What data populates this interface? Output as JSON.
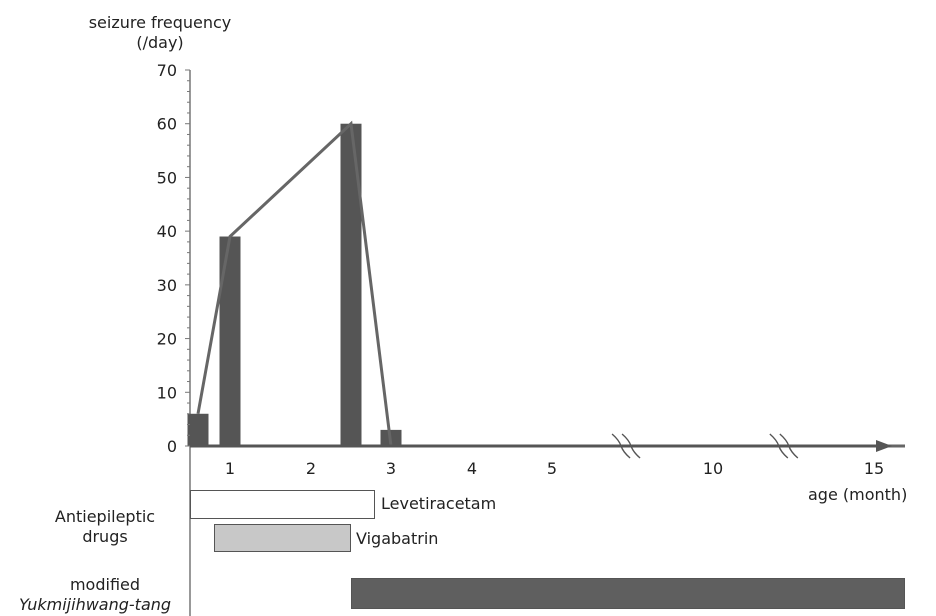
{
  "chart_data": {
    "type": "bar",
    "title": "",
    "ylabel_line1": "seizure frequency",
    "ylabel_line2": "(/day)",
    "xlabel": "age (month)",
    "ylim": [
      0,
      70
    ],
    "yticks": [
      "0",
      "10",
      "20",
      "30",
      "40",
      "50",
      "60",
      "70"
    ],
    "xticks": [
      "1",
      "2",
      "3",
      "4",
      "5",
      "10",
      "15"
    ],
    "axis_breaks": [
      "between 5 and 10",
      "between 10 and 15"
    ],
    "series": [
      {
        "kind": "bar",
        "color": "#555555",
        "points": [
          {
            "x": 0.2,
            "y": 6
          },
          {
            "x": 1.0,
            "y": 39
          },
          {
            "x": 2.5,
            "y": 60
          },
          {
            "x": 3.0,
            "y": 3
          }
        ]
      },
      {
        "kind": "line",
        "color": "#666666",
        "points": [
          {
            "x": 0.2,
            "y": 6
          },
          {
            "x": 1.0,
            "y": 39
          },
          {
            "x": 2.5,
            "y": 60
          },
          {
            "x": 3.0,
            "y": 0
          },
          {
            "x": 15.5,
            "y": 0
          }
        ]
      }
    ]
  },
  "treatments": {
    "group_label_line1": "Antiepileptic",
    "group_label_line2": "drugs",
    "drugs": [
      {
        "name": "Levetiracetam",
        "start_month": 0,
        "end_month": 2.8,
        "fill": "#ffffff"
      },
      {
        "name": "Vigabatrin",
        "start_month": 0.6,
        "end_month": 2.5,
        "fill": "#c8c8c8"
      }
    ],
    "herbal_label_line1": "modified",
    "herbal_label_line2": "Yukmijihwang-tang",
    "herbal": {
      "start_month": 2.5,
      "end_month": 15.5,
      "fill": "#5f5f5f"
    }
  }
}
